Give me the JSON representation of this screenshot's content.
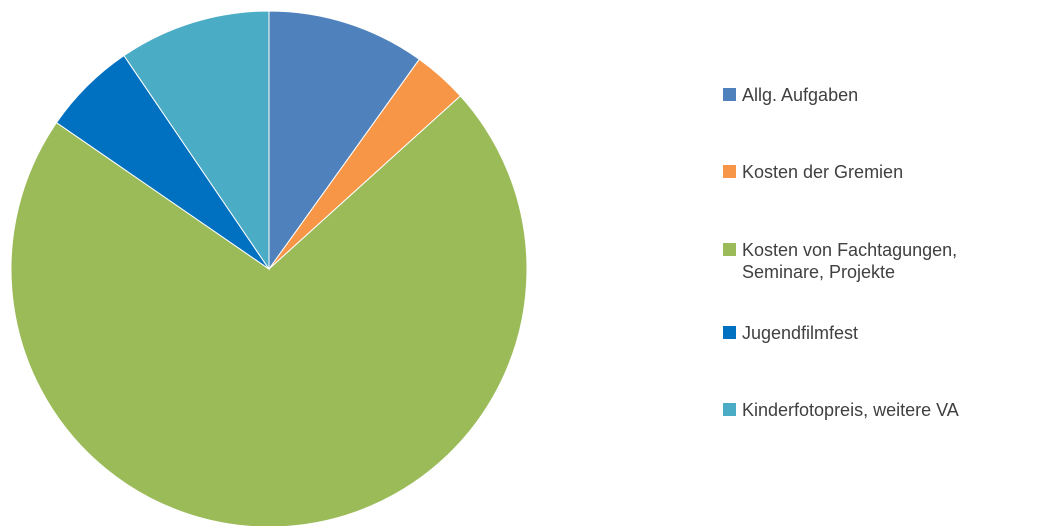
{
  "chart_data": {
    "type": "pie",
    "categories": [
      "Allg. Aufgaben",
      "Kosten der Gremien",
      "Kosten von Fachtagungen, Seminare, Projekte",
      "Jugendfilmfest",
      "Kinderfotopreis, weitere VA"
    ],
    "values": [
      9.9,
      3.4,
      71.3,
      5.9,
      9.5
    ],
    "colors": [
      "#4f81bd",
      "#f79646",
      "#9bbb59",
      "#0070c0",
      "#4bacc6"
    ],
    "legend": "right"
  }
}
